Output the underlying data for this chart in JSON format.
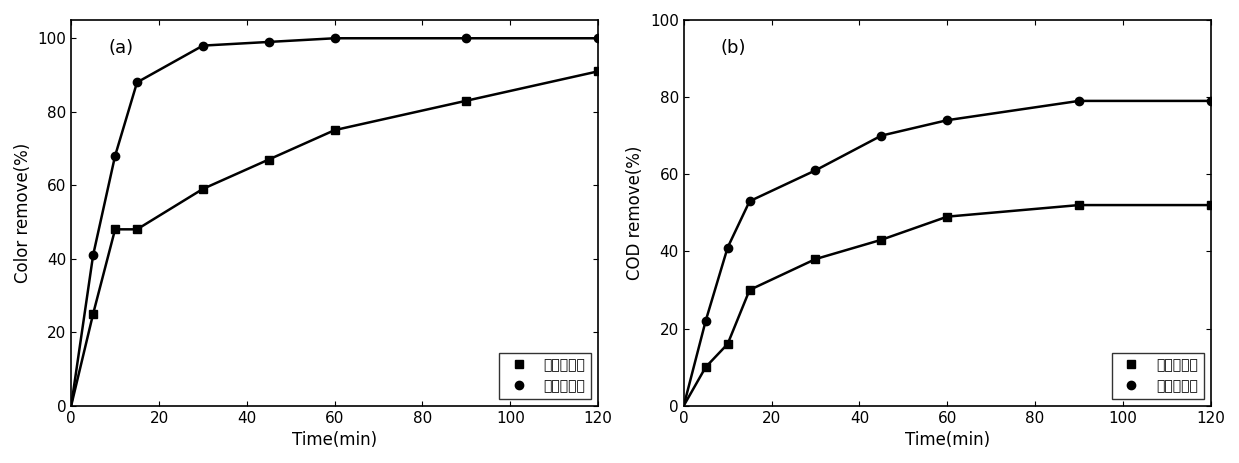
{
  "panel_a": {
    "label": "(a)",
    "xlabel": "Time(min)",
    "ylabel": "Color remove(%)",
    "xlim": [
      0,
      120
    ],
    "ylim": [
      0,
      105
    ],
    "yticks": [
      0,
      20,
      40,
      60,
      80,
      100
    ],
    "xticks": [
      0,
      20,
      40,
      60,
      80,
      100,
      120
    ],
    "series": [
      {
        "name": "未高温处理",
        "marker": "s",
        "x": [
          5,
          10,
          15,
          30,
          45,
          60,
          90,
          120
        ],
        "y": [
          25,
          48,
          48,
          59,
          67,
          75,
          83,
          91
        ]
      },
      {
        "name": "已高温处理",
        "marker": "o",
        "x": [
          5,
          10,
          15,
          30,
          45,
          60,
          90,
          120
        ],
        "y": [
          41,
          68,
          88,
          98,
          99,
          100,
          100,
          100
        ]
      }
    ]
  },
  "panel_b": {
    "label": "(b)",
    "xlabel": "Time(min)",
    "ylabel": "COD remove(%)",
    "xlim": [
      0,
      120
    ],
    "ylim": [
      0,
      100
    ],
    "yticks": [
      0,
      20,
      40,
      60,
      80,
      100
    ],
    "xticks": [
      0,
      20,
      40,
      60,
      80,
      100,
      120
    ],
    "series": [
      {
        "name": "未高温处理",
        "marker": "s",
        "x": [
          5,
          10,
          15,
          30,
          45,
          60,
          90,
          120
        ],
        "y": [
          10,
          16,
          30,
          38,
          43,
          49,
          52,
          52
        ]
      },
      {
        "name": "已高温处理",
        "marker": "o",
        "x": [
          5,
          10,
          15,
          30,
          45,
          60,
          90,
          120
        ],
        "y": [
          22,
          41,
          53,
          61,
          70,
          74,
          79,
          79
        ]
      }
    ]
  },
  "line_color": "#000000",
  "marker_size": 6,
  "line_width": 1.8,
  "legend_loc": "lower right",
  "font_size_label": 12,
  "font_size_tick": 11,
  "font_size_legend": 10,
  "font_size_panel_label": 13
}
